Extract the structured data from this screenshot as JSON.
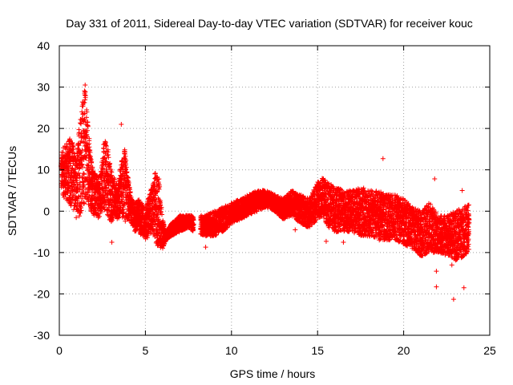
{
  "chart_data": {
    "type": "scatter",
    "title": "Day 331 of 2011, Sidereal Day-to-day VTEC variation (SDTVAR) for receiver kouc",
    "xlabel": "GPS time / hours",
    "ylabel": "SDTVAR / TECUs",
    "xlim": [
      0,
      25
    ],
    "ylim": [
      -30,
      40
    ],
    "xticks": [
      0,
      5,
      10,
      15,
      20,
      25
    ],
    "yticks": [
      -30,
      -20,
      -10,
      0,
      10,
      20,
      30,
      40
    ],
    "xtick_labels": [
      "0",
      "5",
      "10",
      "15",
      "20",
      "25"
    ],
    "ytick_labels": [
      "-30",
      "-20",
      "-10",
      "0",
      "10",
      "20",
      "30",
      "40"
    ],
    "grid": true,
    "marker": "+",
    "series": [
      {
        "name": "SDTVAR",
        "color": "#ff0000",
        "envelope": {
          "x": [
            0.1,
            0.3,
            0.5,
            0.7,
            0.9,
            1.0,
            1.2,
            1.4,
            1.5,
            1.6,
            1.8,
            2.0,
            2.2,
            2.4,
            2.6,
            2.8,
            3.0,
            3.2,
            3.4,
            3.6,
            3.8,
            4.0,
            4.2,
            4.4,
            4.6,
            4.8,
            5.0,
            5.2,
            5.4,
            5.6,
            5.8,
            6.0,
            6.2,
            6.5,
            7.0,
            7.5,
            7.8,
            8.5,
            9.0,
            9.5,
            10.0,
            10.5,
            11.0,
            11.5,
            12.0,
            12.5,
            13.0,
            13.5,
            14.0,
            14.5,
            15.0,
            15.3,
            15.6,
            16.0,
            16.5,
            17.0,
            17.5,
            18.0,
            18.5,
            19.0,
            19.5,
            20.0,
            20.5,
            21.0,
            21.5,
            22.0,
            22.5,
            23.0,
            23.5,
            23.8
          ],
          "upper": [
            14,
            16,
            17,
            18,
            15,
            12,
            24,
            28,
            30,
            26,
            14,
            10,
            8,
            9,
            18,
            16,
            10,
            8,
            6,
            12,
            15,
            8,
            3,
            2,
            3,
            2,
            1,
            4,
            6,
            10,
            8,
            -2,
            -5,
            -3,
            -1,
            -1,
            -1,
            -1,
            0,
            1,
            2,
            3,
            4,
            5,
            5,
            4,
            3,
            5,
            4,
            3,
            7,
            8,
            7,
            6,
            5,
            5,
            6,
            5,
            5,
            4,
            4,
            3,
            1,
            0,
            2,
            -1,
            -1,
            0,
            1,
            2
          ],
          "lower": [
            5,
            3,
            2,
            1,
            0,
            -2,
            -1,
            1,
            2,
            3,
            0,
            -1,
            -2,
            -1,
            0,
            -1,
            -3,
            -1,
            -2,
            -1,
            -3,
            -2,
            -3,
            -5,
            -5,
            -6,
            -7,
            -6,
            -5,
            -8,
            -9,
            -9,
            -7,
            -6,
            -5,
            -4,
            -5,
            -6,
            -6,
            -5,
            -3,
            -2,
            -1,
            0,
            1,
            0,
            -2,
            -1,
            -3,
            -4,
            -2,
            -1,
            -4,
            -5,
            -5,
            -5,
            -6,
            -6,
            -7,
            -7,
            -7,
            -8,
            -9,
            -11,
            -10,
            -10,
            -11,
            -12,
            -11,
            -10
          ]
        },
        "gaps": [
          [
            7.8,
            8.2
          ]
        ],
        "outliers": [
          {
            "x": 1.5,
            "y": 30.5
          },
          {
            "x": 3.6,
            "y": 21
          },
          {
            "x": 3.05,
            "y": -7.5
          },
          {
            "x": 8.5,
            "y": -8.7
          },
          {
            "x": 13.7,
            "y": -4.5
          },
          {
            "x": 15.5,
            "y": -7.3
          },
          {
            "x": 16.5,
            "y": -7.5
          },
          {
            "x": 18.8,
            "y": 12.7
          },
          {
            "x": 21.8,
            "y": 7.8
          },
          {
            "x": 21.9,
            "y": -14.5
          },
          {
            "x": 21.9,
            "y": -18.3
          },
          {
            "x": 22.9,
            "y": -21.3
          },
          {
            "x": 23.4,
            "y": 5
          },
          {
            "x": 23.5,
            "y": -18.5
          },
          {
            "x": 22.8,
            "y": -13
          }
        ]
      }
    ]
  }
}
